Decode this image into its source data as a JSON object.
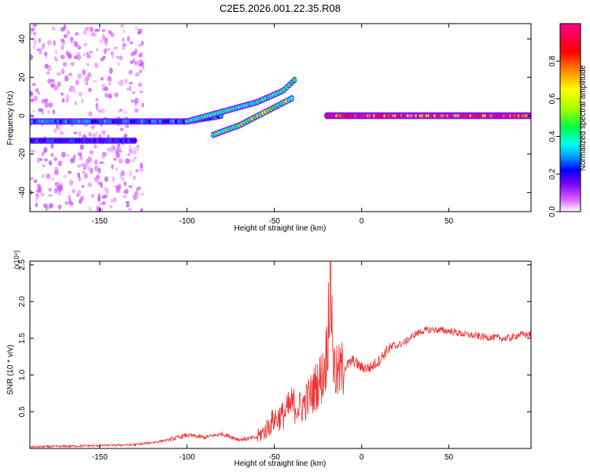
{
  "title": "C2E5.2026.001.22.35.R08",
  "chart_data": [
    {
      "type": "heatmap",
      "title": "C2E5.2026.001.22.35.R08",
      "xlabel": "Height of straight line (km)",
      "ylabel": "Frequency (Hz)",
      "xlim": [
        -190,
        97
      ],
      "ylim": [
        -50,
        48
      ],
      "xticks": [
        -150,
        -100,
        -50,
        0,
        50
      ],
      "yticks": [
        -40,
        -20,
        0,
        20,
        40
      ],
      "colorbar": {
        "label": "Normalized spectral amplitude",
        "range": [
          0,
          1
        ],
        "ticks": [
          "0.0",
          "0.2",
          "0.4",
          "0.6",
          "0.8"
        ],
        "colors": [
          "#ffffff",
          "#e066ff",
          "#7700ff",
          "#0000ff",
          "#00aaff",
          "#00ffee",
          "#00ff44",
          "#aaff00",
          "#ffff00",
          "#ff8800",
          "#ff0000",
          "#ff0088"
        ]
      },
      "features": [
        {
          "name": "dc-band",
          "x": [
            -190,
            -100,
            -80
          ],
          "y": [
            -3,
            -3,
            0
          ],
          "amplitude": 0.35
        },
        {
          "name": "lower-band",
          "x": [
            -190,
            -130
          ],
          "y": [
            -13,
            -13
          ],
          "amplitude": 0.3
        },
        {
          "name": "rising-arc-1",
          "x": [
            -100,
            -80,
            -60,
            -45,
            -38
          ],
          "y": [
            -3,
            2,
            7,
            13,
            19
          ],
          "amplitude": 0.5
        },
        {
          "name": "rising-arc-2",
          "x": [
            -85,
            -70,
            -55,
            -40
          ],
          "y": [
            -10,
            -5,
            2,
            9
          ],
          "amplitude": 0.6
        },
        {
          "name": "strong-carrier",
          "x": [
            -20,
            97
          ],
          "y": [
            0,
            0
          ],
          "amplitude": 0.95
        }
      ]
    },
    {
      "type": "line",
      "xlabel": "Height of straight line (km)",
      "ylabel": "SNR (10 * v/v)",
      "y_multiplier": "(x10⁴)",
      "xlim": [
        -190,
        97
      ],
      "ylim": [
        0,
        2.55
      ],
      "xticks": [
        -150,
        -100,
        -50,
        0,
        50
      ],
      "yticks": [
        0.5,
        1.0,
        1.5,
        2.0,
        2.5
      ],
      "yticklabels": [
        "0.5",
        "1.0",
        "1.5",
        "2.0",
        "2.5"
      ],
      "color": "#ee3333",
      "series": [
        {
          "name": "SNR",
          "x": [
            -190,
            -170,
            -150,
            -130,
            -120,
            -110,
            -100,
            -90,
            -80,
            -70,
            -60,
            -55,
            -50,
            -45,
            -40,
            -35,
            -30,
            -25,
            -22,
            -20,
            -18,
            -16,
            -14,
            -12,
            -10,
            -5,
            0,
            5,
            10,
            15,
            20,
            25,
            30,
            35,
            40,
            50,
            60,
            70,
            80,
            85,
            90,
            97
          ],
          "y": [
            0.02,
            0.03,
            0.04,
            0.05,
            0.08,
            0.12,
            0.18,
            0.15,
            0.2,
            0.12,
            0.15,
            0.25,
            0.4,
            0.45,
            0.6,
            0.55,
            0.7,
            0.9,
            1.0,
            1.3,
            2.45,
            1.1,
            1.0,
            1.05,
            1.1,
            1.2,
            1.1,
            1.1,
            1.2,
            1.35,
            1.4,
            1.45,
            1.55,
            1.6,
            1.62,
            1.6,
            1.55,
            1.52,
            1.5,
            1.5,
            1.55,
            1.55
          ]
        }
      ]
    }
  ]
}
